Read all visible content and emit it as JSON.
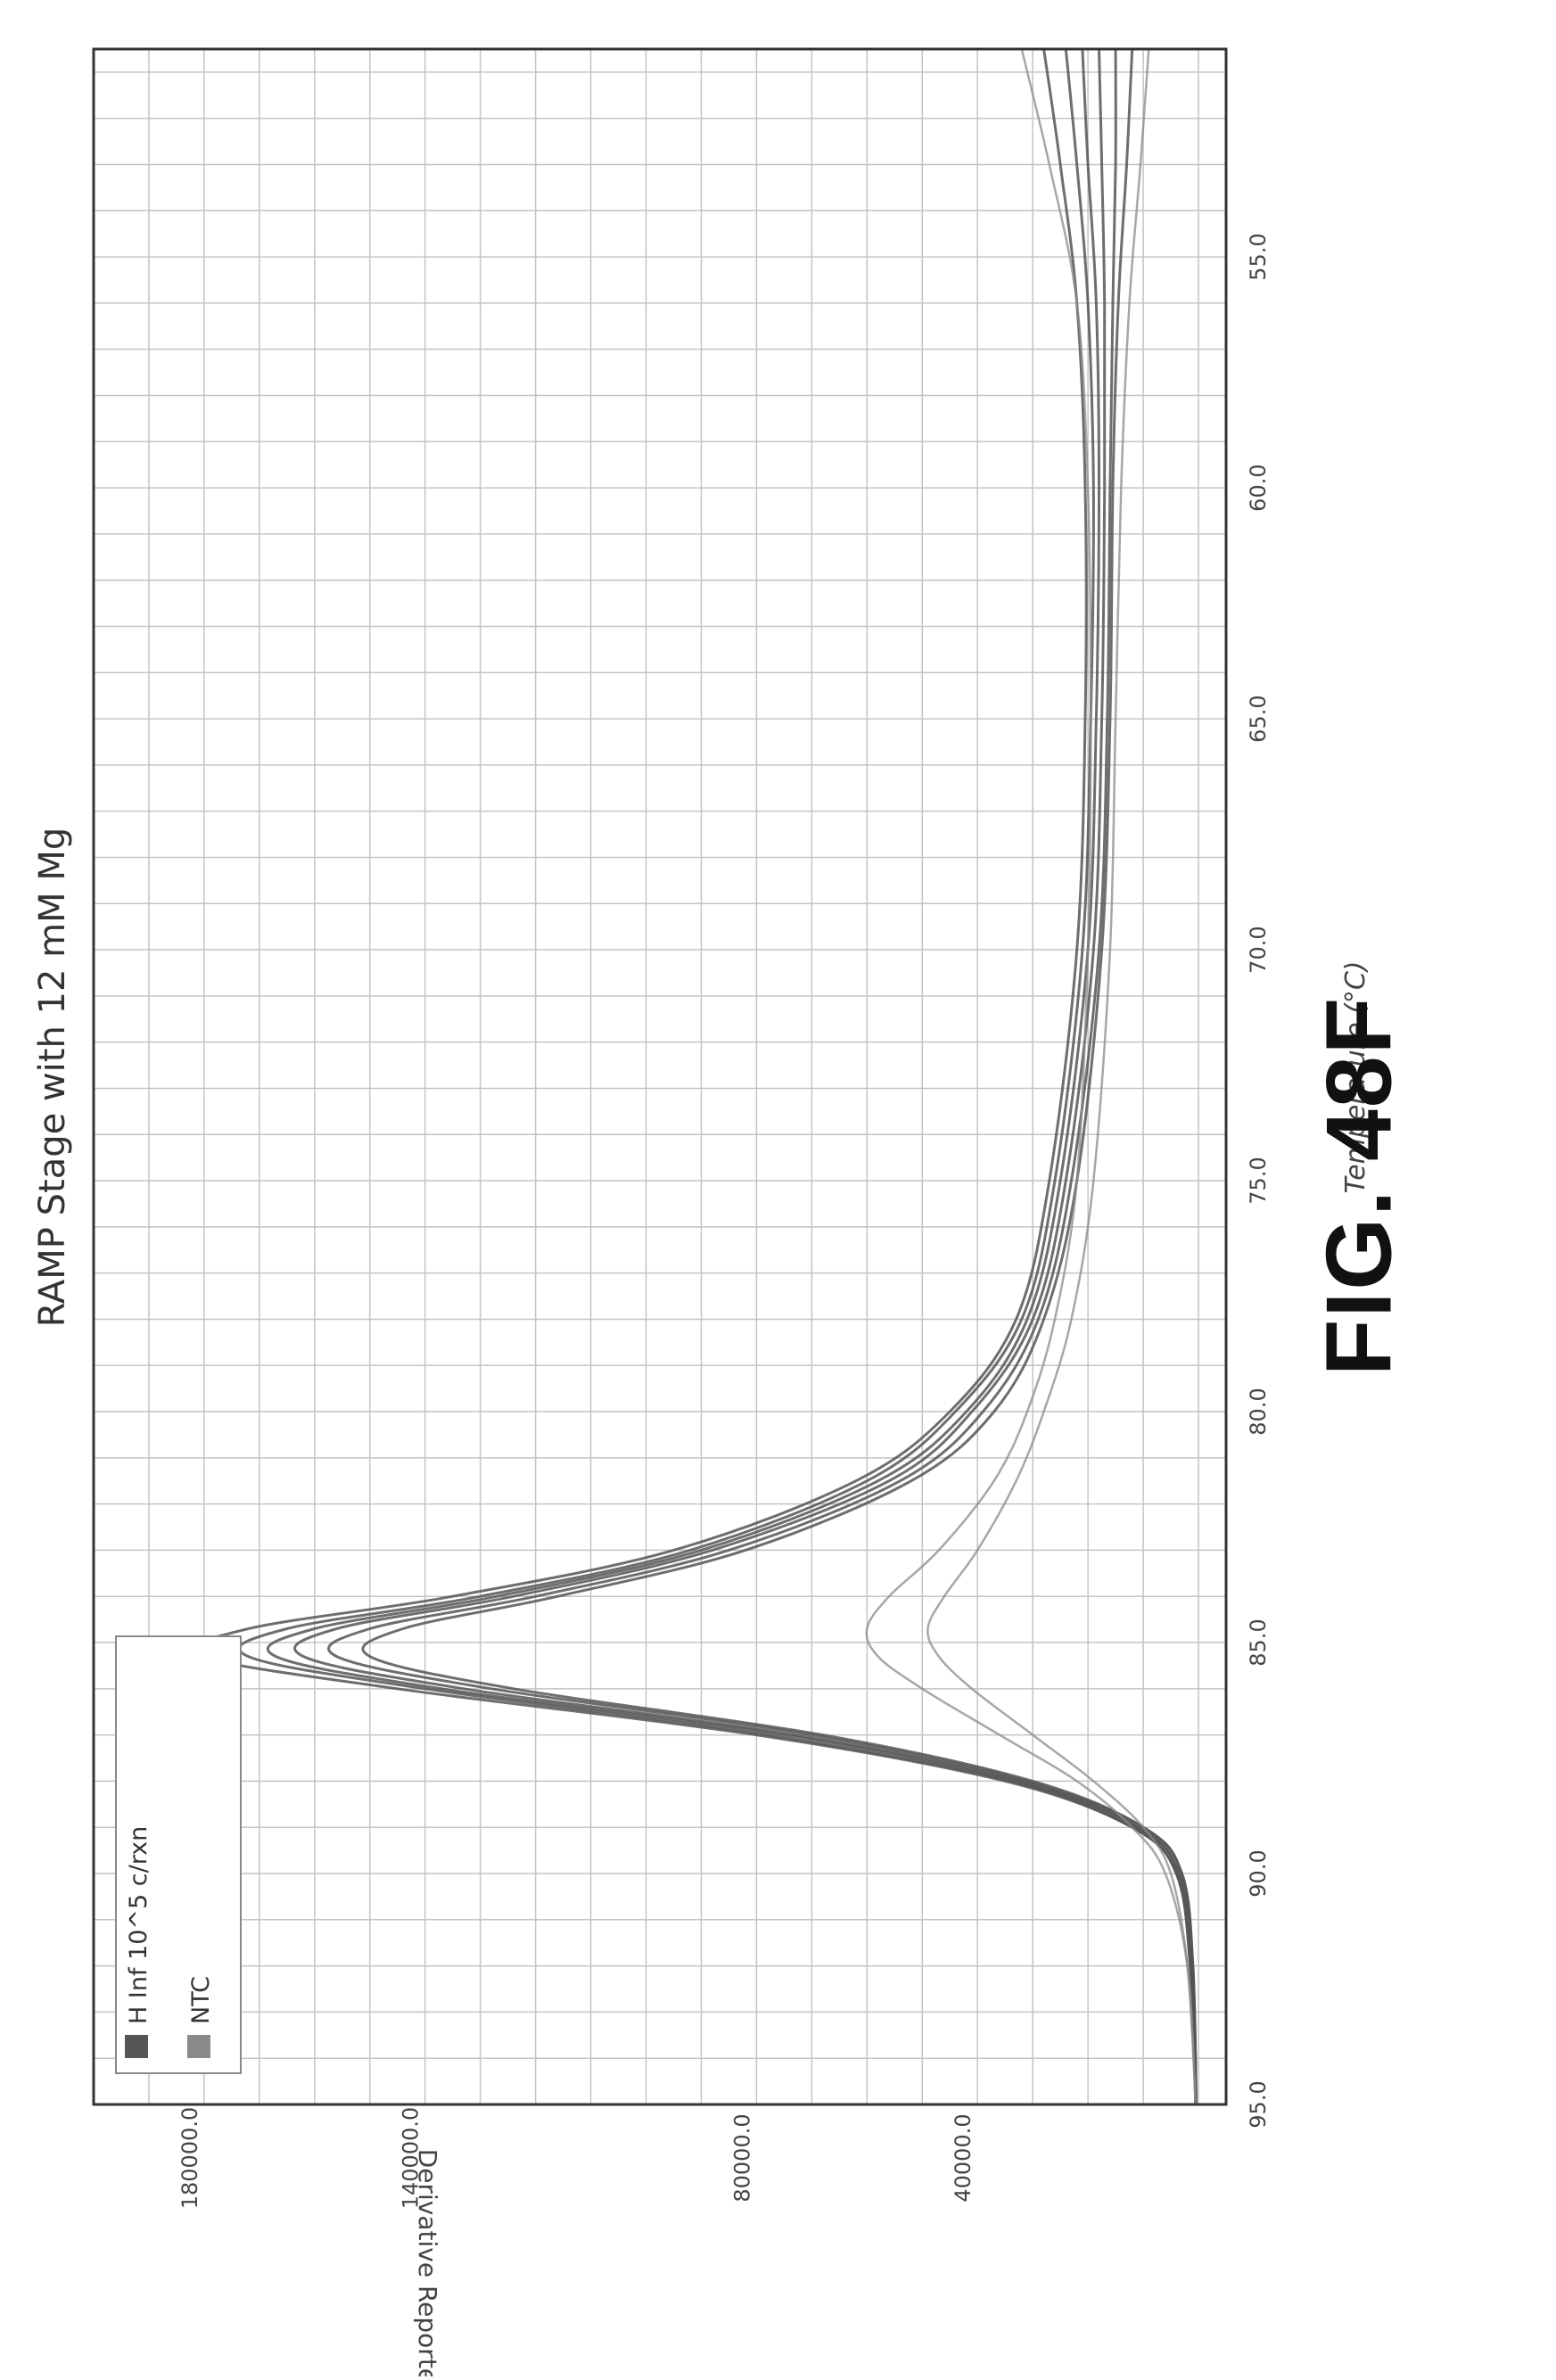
{
  "figure_label": "FIG. 48F",
  "chart_data": {
    "type": "line",
    "orientation": "rotated-90-ccw",
    "title": "RAMP Stage with 12 mM Mg",
    "xlabel": "Temperature (°C)",
    "ylabel": "Derivative Reporter (-Rn')",
    "xlim": [
      50.5,
      95.0
    ],
    "ylim": [
      -5000,
      200000
    ],
    "x_ticks": [
      {
        "value": 55,
        "label": "55.0"
      },
      {
        "value": 60,
        "label": "60.0"
      },
      {
        "value": 65,
        "label": "65.0"
      },
      {
        "value": 70,
        "label": "70.0"
      },
      {
        "value": 75,
        "label": "75.0"
      },
      {
        "value": 80,
        "label": "80.0"
      },
      {
        "value": 85,
        "label": "85.0"
      },
      {
        "value": 90,
        "label": "90.0"
      },
      {
        "value": 95,
        "label": "95.0"
      }
    ],
    "y_ticks": [
      {
        "value": 40000,
        "label": "40000.0"
      },
      {
        "value": 80000,
        "label": "80000.0"
      },
      {
        "value": 140000,
        "label": "140000.0"
      },
      {
        "value": 180000,
        "label": "180000.0"
      }
    ],
    "grid": true,
    "legend_position": "top-left",
    "legend": [
      {
        "label": "H Inf 10^5 c/rxn",
        "color": "#555555"
      },
      {
        "label": "NTC",
        "color": "#8a8a8a"
      }
    ],
    "series_groups": [
      {
        "name": "H Inf 10^5 c/rxn",
        "color": "#555555",
        "x": [
          50.5,
          53,
          56,
          60,
          65,
          70,
          75,
          78,
          80,
          81.5,
          83,
          84,
          84.7,
          85.3,
          86,
          87,
          88,
          89,
          90,
          92,
          95
        ],
        "curves": [
          [
            28000,
            25000,
            22000,
            20500,
            20500,
            22000,
            27000,
            33000,
            45000,
            62000,
            95000,
            135000,
            172000,
            180000,
            145000,
            80000,
            35000,
            12000,
            4000,
            1500,
            500
          ],
          [
            24000,
            22000,
            20000,
            19000,
            19500,
            21000,
            26000,
            32000,
            44000,
            60000,
            92000,
            130000,
            165000,
            172000,
            140000,
            78000,
            34000,
            12000,
            4000,
            1500,
            500
          ],
          [
            21000,
            20000,
            18500,
            18000,
            18500,
            20000,
            25000,
            31000,
            42000,
            58000,
            90000,
            127000,
            160000,
            167000,
            137000,
            75000,
            33000,
            11000,
            3500,
            1200,
            500
          ],
          [
            18000,
            17500,
            17000,
            17000,
            17500,
            19000,
            24000,
            30000,
            41000,
            56000,
            88000,
            124000,
            156000,
            162000,
            133000,
            73000,
            32000,
            11000,
            3500,
            1200,
            400
          ],
          [
            15000,
            15000,
            15500,
            16000,
            16500,
            18000,
            23000,
            29000,
            39000,
            54000,
            85000,
            120000,
            150000,
            156000,
            128000,
            70000,
            31000,
            10000,
            3000,
            1000,
            400
          ],
          [
            12000,
            13000,
            14500,
            15500,
            16000,
            17500,
            22000,
            28000,
            37000,
            52000,
            82000,
            116000,
            144000,
            150000,
            124000,
            68000,
            30000,
            10000,
            3000,
            1000,
            400
          ]
        ]
      },
      {
        "name": "NTC",
        "color": "#8a8a8a",
        "x": [
          50.5,
          53,
          56,
          60,
          65,
          70,
          75,
          78,
          80,
          81.5,
          83,
          84,
          84.7,
          85.3,
          86,
          87,
          88,
          89,
          90,
          92,
          95
        ],
        "curves": [
          [
            32000,
            27000,
            22000,
            20000,
            19500,
            20000,
            22000,
            26000,
            31000,
            37000,
            47000,
            56000,
            60000,
            58000,
            50000,
            36000,
            22000,
            12000,
            6000,
            2000,
            500
          ],
          [
            9000,
            10500,
            12500,
            14000,
            15000,
            16000,
            19000,
            23000,
            28000,
            33000,
            40000,
            46000,
            49000,
            47000,
            41000,
            30000,
            19000,
            10000,
            5000,
            2000,
            500
          ]
        ]
      }
    ]
  }
}
